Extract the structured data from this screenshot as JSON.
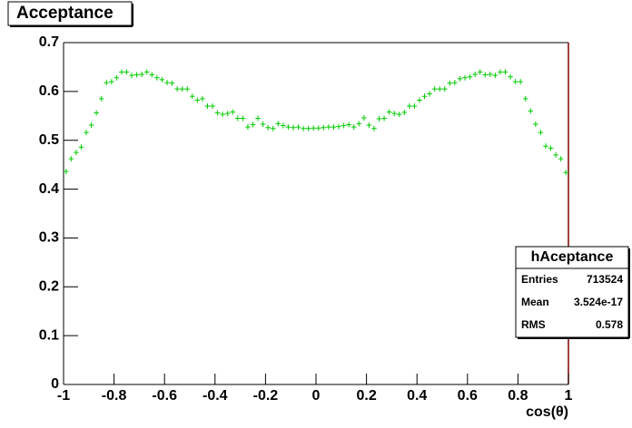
{
  "chart_data": {
    "type": "scatter",
    "title": "Acceptance",
    "x_label": "cos(θ)",
    "color": "#00cc00",
    "xlim": [
      -1,
      1
    ],
    "ylim": [
      0,
      0.7
    ],
    "xticks": [
      -1,
      -0.8,
      -0.6,
      -0.4,
      -0.2,
      0,
      0.2,
      0.4,
      0.6,
      0.8,
      1
    ],
    "yticks": [
      0,
      0.1,
      0.2,
      0.3,
      0.4,
      0.5,
      0.6,
      0.7
    ],
    "x": [
      -0.99,
      -0.97,
      -0.95,
      -0.93,
      -0.91,
      -0.89,
      -0.87,
      -0.85,
      -0.83,
      -0.81,
      -0.79,
      -0.77,
      -0.75,
      -0.73,
      -0.71,
      -0.69,
      -0.67,
      -0.65,
      -0.63,
      -0.61,
      -0.59,
      -0.57,
      -0.55,
      -0.53,
      -0.51,
      -0.49,
      -0.47,
      -0.45,
      -0.43,
      -0.41,
      -0.39,
      -0.37,
      -0.35,
      -0.33,
      -0.31,
      -0.29,
      -0.27,
      -0.25,
      -0.23,
      -0.21,
      -0.19,
      -0.17,
      -0.15,
      -0.13,
      -0.11,
      -0.09,
      -0.07,
      -0.05,
      -0.03,
      -0.01,
      0.01,
      0.03,
      0.05,
      0.07,
      0.09,
      0.11,
      0.13,
      0.15,
      0.17,
      0.19,
      0.21,
      0.23,
      0.25,
      0.27,
      0.29,
      0.31,
      0.33,
      0.35,
      0.37,
      0.39,
      0.41,
      0.43,
      0.45,
      0.47,
      0.49,
      0.51,
      0.53,
      0.55,
      0.57,
      0.59,
      0.61,
      0.63,
      0.65,
      0.67,
      0.69,
      0.71,
      0.73,
      0.75,
      0.77,
      0.79,
      0.81,
      0.83,
      0.85,
      0.87,
      0.89,
      0.91,
      0.93,
      0.95,
      0.97,
      0.99
    ],
    "values": [
      0.436,
      0.462,
      0.475,
      0.486,
      0.516,
      0.531,
      0.556,
      0.585,
      0.618,
      0.62,
      0.628,
      0.64,
      0.64,
      0.633,
      0.634,
      0.635,
      0.64,
      0.634,
      0.628,
      0.624,
      0.618,
      0.617,
      0.605,
      0.605,
      0.605,
      0.59,
      0.582,
      0.585,
      0.57,
      0.57,
      0.556,
      0.553,
      0.555,
      0.558,
      0.545,
      0.545,
      0.527,
      0.532,
      0.545,
      0.533,
      0.526,
      0.524,
      0.534,
      0.53,
      0.527,
      0.526,
      0.527,
      0.524,
      0.524,
      0.525,
      0.525,
      0.526,
      0.527,
      0.527,
      0.528,
      0.53,
      0.532,
      0.527,
      0.534,
      0.546,
      0.531,
      0.524,
      0.544,
      0.545,
      0.558,
      0.555,
      0.553,
      0.557,
      0.57,
      0.57,
      0.582,
      0.59,
      0.595,
      0.605,
      0.605,
      0.605,
      0.617,
      0.618,
      0.626,
      0.628,
      0.63,
      0.635,
      0.64,
      0.634,
      0.635,
      0.633,
      0.64,
      0.64,
      0.63,
      0.62,
      0.62,
      0.585,
      0.56,
      0.533,
      0.516,
      0.488,
      0.484,
      0.47,
      0.462,
      0.434
    ],
    "stats": {
      "name": "hAceptance",
      "rows": [
        {
          "label": "Entries",
          "value": 713524
        },
        {
          "label": "Mean",
          "value": 3.524e-17
        },
        {
          "label": "RMS",
          "value": 0.578
        }
      ]
    }
  }
}
